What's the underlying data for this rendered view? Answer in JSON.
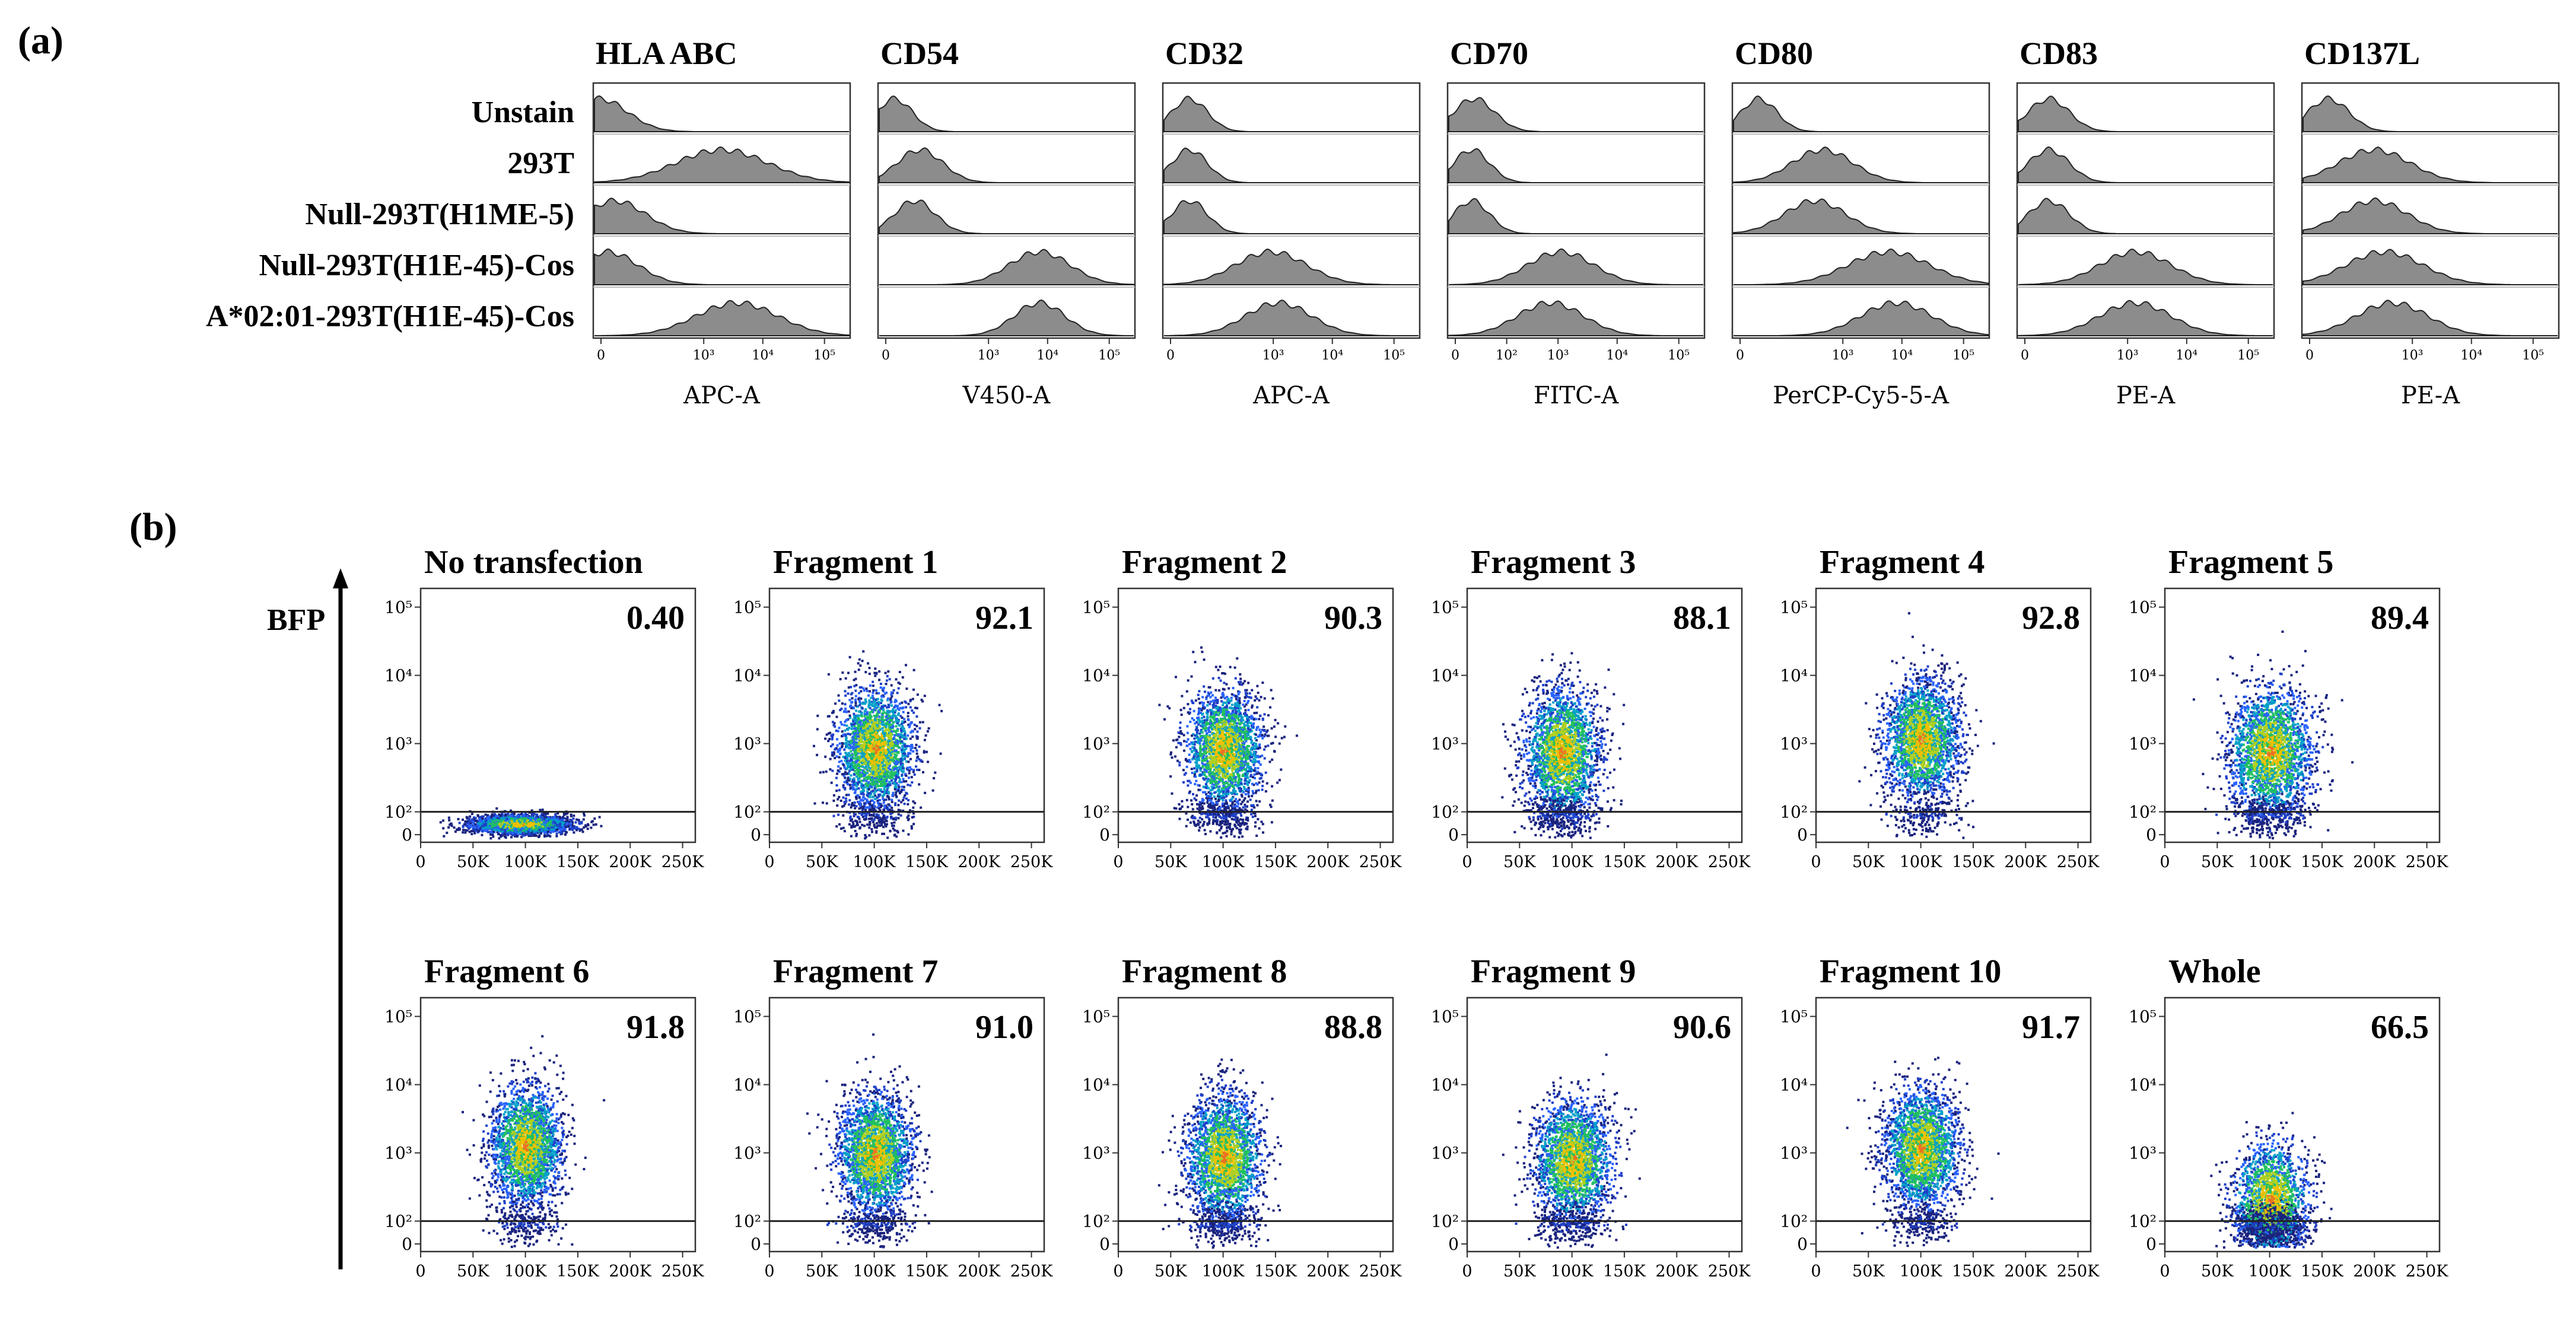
{
  "panel_a": {
    "label": "(a)",
    "row_labels": [
      "Unstain",
      "293T",
      "Null-293T(H1ME-5)",
      "Null-293T(H1E-45)-Cos",
      "A*02:01-293T(H1E-45)-Cos"
    ],
    "x_tick_labels": [
      "0",
      "10²",
      "10³",
      "10⁴",
      "10⁵"
    ],
    "x_tick_labels_no102": [
      "0",
      "10³",
      "10⁴",
      "10⁵"
    ]
  },
  "panel_b": {
    "label": "(b)",
    "y_axis_label": "BFP",
    "x_tick_labels": [
      "0",
      "50K",
      "100K",
      "150K",
      "200K",
      "250K"
    ],
    "y_tick_labels": [
      "10⁵",
      "10⁴",
      "10³",
      "10²",
      "0"
    ]
  },
  "chart_data": [
    {
      "type": "histogram",
      "panel": "a",
      "markers": [
        {
          "title": "HLA ABC",
          "xlabel": "APC-A",
          "show_102": false,
          "peaks": [
            [
              0.02,
              0.11
            ],
            [
              0.5,
              0.18
            ],
            [
              0.08,
              0.12
            ],
            [
              0.05,
              0.12
            ],
            [
              0.56,
              0.16
            ]
          ]
        },
        {
          "title": "CD54",
          "xlabel": "V450-A",
          "show_102": false,
          "peaks": [
            [
              0.06,
              0.07
            ],
            [
              0.16,
              0.09
            ],
            [
              0.14,
              0.08
            ],
            [
              0.63,
              0.12
            ],
            [
              0.63,
              0.1
            ]
          ]
        },
        {
          "title": "CD32",
          "xlabel": "APC-A",
          "show_102": false,
          "peaks": [
            [
              0.1,
              0.07
            ],
            [
              0.1,
              0.07
            ],
            [
              0.1,
              0.07
            ],
            [
              0.42,
              0.14
            ],
            [
              0.45,
              0.13
            ]
          ]
        },
        {
          "title": "CD70",
          "xlabel": "FITC-A",
          "show_102": true,
          "peaks": [
            [
              0.1,
              0.08
            ],
            [
              0.09,
              0.07
            ],
            [
              0.09,
              0.07
            ],
            [
              0.44,
              0.13
            ],
            [
              0.4,
              0.13
            ]
          ]
        },
        {
          "title": "CD80",
          "xlabel": "PerCP-Cy5-5-A",
          "show_102": false,
          "peaks": [
            [
              0.1,
              0.07
            ],
            [
              0.35,
              0.12
            ],
            [
              0.32,
              0.12
            ],
            [
              0.61,
              0.16
            ],
            [
              0.64,
              0.14
            ]
          ]
        },
        {
          "title": "CD83",
          "xlabel": "PE-A",
          "show_102": false,
          "peaks": [
            [
              0.12,
              0.08
            ],
            [
              0.12,
              0.08
            ],
            [
              0.12,
              0.08
            ],
            [
              0.46,
              0.14
            ],
            [
              0.46,
              0.14
            ]
          ]
        },
        {
          "title": "CD137L",
          "xlabel": "PE-A",
          "show_102": false,
          "peaks": [
            [
              0.1,
              0.08
            ],
            [
              0.28,
              0.14
            ],
            [
              0.28,
              0.13
            ],
            [
              0.32,
              0.15
            ],
            [
              0.35,
              0.14
            ]
          ]
        }
      ]
    },
    {
      "type": "scatter",
      "panel": "b",
      "xlim": [
        0,
        262144
      ],
      "gate_y": 100,
      "plots": [
        {
          "title": "No transfection",
          "percent": "0.40",
          "cx": 95000,
          "cy": 30,
          "sx": 24000,
          "sy": 0.2,
          "low_frac": 1.0
        },
        {
          "title": "Fragment 1",
          "percent": "92.1",
          "cx": 100000,
          "cy": 900,
          "sx": 18000,
          "sy": 0.42,
          "low_frac": 0.08
        },
        {
          "title": "Fragment 2",
          "percent": "90.3",
          "cx": 100000,
          "cy": 850,
          "sx": 18000,
          "sy": 0.42,
          "low_frac": 0.1
        },
        {
          "title": "Fragment 3",
          "percent": "88.1",
          "cx": 90000,
          "cy": 750,
          "sx": 18000,
          "sy": 0.45,
          "low_frac": 0.12
        },
        {
          "title": "Fragment 4",
          "percent": "92.8",
          "cx": 100000,
          "cy": 1200,
          "sx": 18000,
          "sy": 0.42,
          "low_frac": 0.07
        },
        {
          "title": "Fragment 5",
          "percent": "89.4",
          "cx": 100000,
          "cy": 800,
          "sx": 20000,
          "sy": 0.45,
          "low_frac": 0.11
        },
        {
          "title": "Fragment 6",
          "percent": "91.8",
          "cx": 100000,
          "cy": 1300,
          "sx": 17000,
          "sy": 0.42,
          "low_frac": 0.08
        },
        {
          "title": "Fragment 7",
          "percent": "91.0",
          "cx": 100000,
          "cy": 1000,
          "sx": 18000,
          "sy": 0.42,
          "low_frac": 0.09
        },
        {
          "title": "Fragment 8",
          "percent": "88.8",
          "cx": 100000,
          "cy": 900,
          "sx": 18000,
          "sy": 0.45,
          "low_frac": 0.11
        },
        {
          "title": "Fragment 9",
          "percent": "90.6",
          "cx": 100000,
          "cy": 800,
          "sx": 19000,
          "sy": 0.42,
          "low_frac": 0.09
        },
        {
          "title": "Fragment 10",
          "percent": "91.7",
          "cx": 100000,
          "cy": 1200,
          "sx": 18000,
          "sy": 0.42,
          "low_frac": 0.08
        },
        {
          "title": "Whole",
          "percent": "66.5",
          "cx": 100000,
          "cy": 220,
          "sx": 18000,
          "sy": 0.4,
          "low_frac": 0.34
        }
      ]
    }
  ],
  "colors": {
    "fill": "#8c8c8c",
    "stroke": "#222222",
    "axis": "#333333",
    "gate": "#222222"
  }
}
